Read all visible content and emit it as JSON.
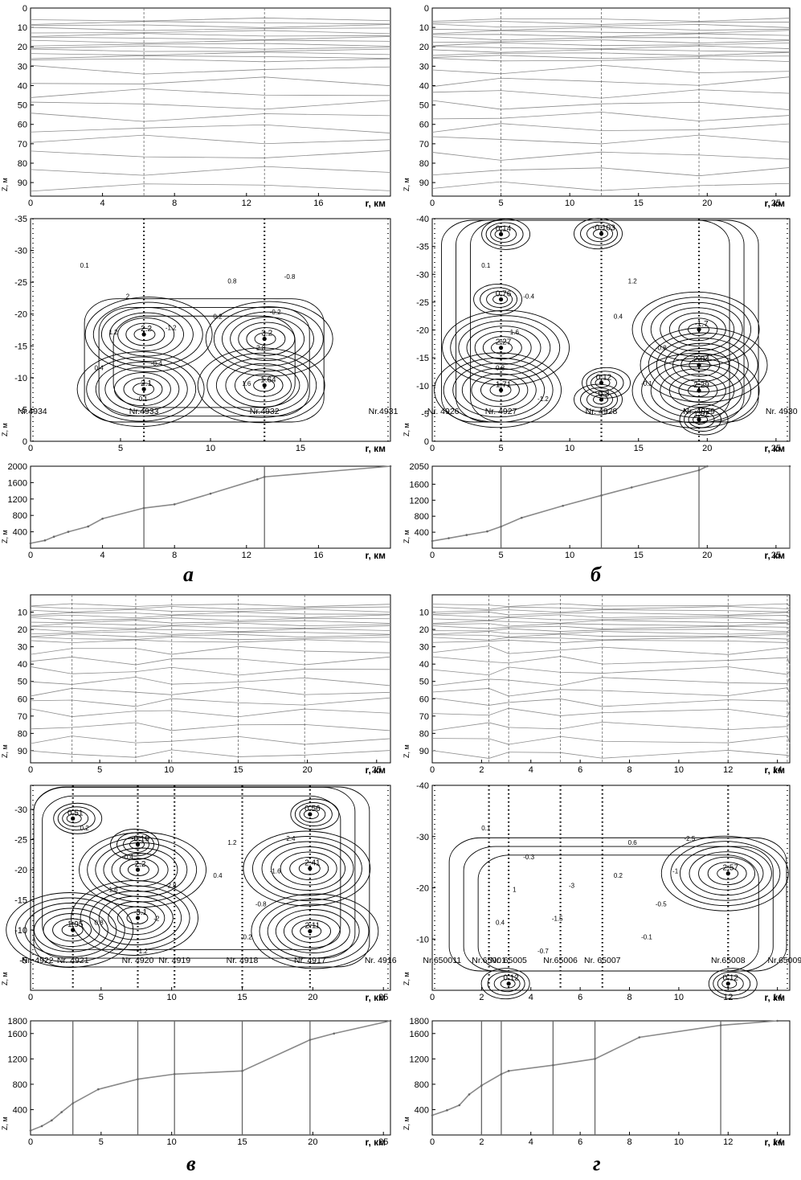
{
  "figure": {
    "panels": [
      {
        "id": "a",
        "label": "а",
        "layers": {
          "xlabel": "r, км",
          "ylabel": "Z, м",
          "xlim": [
            0,
            20
          ],
          "ylim": [
            0,
            97
          ],
          "xticks": [
            0,
            4,
            8,
            12,
            16
          ],
          "yticks": [
            0,
            10,
            20,
            30,
            40,
            50,
            60,
            70,
            80,
            90
          ],
          "wells": [
            6.3,
            13
          ]
        },
        "contour": {
          "xlabel": "r, км",
          "ylabel": "Z, м",
          "xlim": [
            0,
            20
          ],
          "ylim": [
            -35,
            0
          ],
          "xticks": [
            0,
            5,
            10,
            15
          ],
          "yticks": [
            0,
            -5,
            -10,
            -15,
            -20,
            -25,
            -30,
            -35
          ],
          "wells": [
            6.3,
            13
          ],
          "stations": [
            {
              "name": "Nr.4934",
              "x": 0.1
            },
            {
              "name": "Nr.4933",
              "x": 6.3
            },
            {
              "name": "Nr.4932",
              "x": 13
            },
            {
              "name": "Nr.4931",
              "x": 19.6
            }
          ],
          "points": [
            {
              "label": "2.1",
              "x": 6.3,
              "y": -8.2
            },
            {
              "label": "2.2",
              "x": 6.3,
              "y": -16.8
            },
            {
              "label": "-1.64",
              "x": 13,
              "y": -8.8
            },
            {
              "label": "3.2",
              "x": 13,
              "y": -16.1
            }
          ],
          "contour_labels": [
            "0.1",
            "0.2",
            "0.4",
            "0.8",
            "1.2",
            "1.6",
            "2",
            "2.8",
            "-0.1",
            "-0.2",
            "-0.4",
            "-0.8",
            "-1.2"
          ]
        },
        "profile": {
          "xlabel": "r, км",
          "ylabel": "Z, м",
          "xlim": [
            0,
            20
          ],
          "ylim": [
            2000,
            0
          ],
          "xticks": [
            0,
            4,
            8,
            12,
            16
          ],
          "yticks": [
            400,
            800,
            1200,
            1600,
            2000
          ],
          "wells": [
            6.3,
            13
          ],
          "x": [
            0,
            0.8,
            1.3,
            2.1,
            3.2,
            4,
            6.3,
            8,
            10,
            12.6,
            13,
            20
          ],
          "y": [
            120,
            190,
            280,
            400,
            530,
            720,
            980,
            1070,
            1330,
            1680,
            1740,
            2000
          ]
        }
      },
      {
        "id": "b",
        "label": "б",
        "layers": {
          "xlabel": "r, км",
          "ylabel": "Z, м",
          "xlim": [
            0,
            26
          ],
          "ylim": [
            0,
            97
          ],
          "xticks": [
            0,
            5,
            10,
            15,
            20,
            25
          ],
          "yticks": [
            0,
            10,
            20,
            30,
            40,
            50,
            60,
            70,
            80,
            90
          ],
          "wells": [
            5,
            12.3,
            19.4
          ]
        },
        "contour": {
          "xlabel": "r, км",
          "ylabel": "Z, м",
          "xlim": [
            0,
            26
          ],
          "ylim": [
            -40,
            0
          ],
          "xticks": [
            0,
            5,
            10,
            15,
            20,
            25
          ],
          "yticks": [
            0,
            -5,
            -10,
            -15,
            -20,
            -25,
            -30,
            -35,
            -40
          ],
          "wells": [
            5,
            12.3,
            19.4
          ],
          "stations": [
            {
              "name": "Nr. 4926",
              "x": 0.8
            },
            {
              "name": "Nr. 4927",
              "x": 5
            },
            {
              "name": "Nr. 4928",
              "x": 12.3
            },
            {
              "name": "Nr. 4929",
              "x": 19.4
            },
            {
              "name": "Nr. 4930",
              "x": 25.4
            }
          ],
          "points": [
            {
              "label": "1.71",
              "x": 5,
              "y": -9.2
            },
            {
              "label": "2.27",
              "x": 5,
              "y": -16.8
            },
            {
              "label": "0.76",
              "x": 5,
              "y": -25.5
            },
            {
              "label": "0.14",
              "x": 5,
              "y": -37.2
            },
            {
              "label": "0.3",
              "x": 12.3,
              "y": -7.5
            },
            {
              "label": "0.12",
              "x": 12.3,
              "y": -10.5
            },
            {
              "label": "-0.103",
              "x": 12.3,
              "y": -37.3
            },
            {
              "label": "1.02",
              "x": 19.4,
              "y": -3.9
            },
            {
              "label": "2.29",
              "x": 19.4,
              "y": -9.1
            },
            {
              "label": "2.04",
              "x": 19.4,
              "y": -13.7
            },
            {
              "label": "-1.7",
              "x": 19.4,
              "y": -20.1
            }
          ],
          "contour_labels": [
            "0.1",
            "0.4",
            "0.8",
            "1.2",
            "1.6",
            "-0.1",
            "-0.4",
            "-0.8",
            "-1.2"
          ]
        },
        "profile": {
          "xlabel": "r, км",
          "ylabel": "Z, м",
          "xlim": [
            0,
            26
          ],
          "ylim": [
            2050,
            0
          ],
          "xticks": [
            0,
            5,
            10,
            15,
            20,
            25
          ],
          "yticks": [
            400,
            800,
            1200,
            1600,
            2050
          ],
          "wells": [
            5,
            12.3,
            19.4,
            26
          ],
          "x": [
            0,
            1.2,
            2.5,
            4,
            5,
            6.5,
            9.5,
            12.3,
            14.5,
            19.4,
            20,
            26
          ],
          "y": [
            180,
            250,
            330,
            420,
            540,
            760,
            1060,
            1320,
            1520,
            1950,
            2050,
            2050
          ]
        }
      },
      {
        "id": "c",
        "label": "в",
        "layers": {
          "xlabel": "r, км",
          "ylabel": "Z, м",
          "xlim": [
            0,
            26
          ],
          "ylim": [
            0,
            97
          ],
          "xticks": [
            0,
            5,
            10,
            15,
            20,
            25
          ],
          "yticks": [
            10,
            20,
            30,
            40,
            50,
            60,
            70,
            80,
            90
          ],
          "wells": [
            3,
            7.6,
            10.2,
            15,
            19.8
          ]
        },
        "contour": {
          "xlabel": "r, км",
          "ylabel": "Z, м",
          "xlim": [
            0,
            25.5
          ],
          "ylim": [
            -34,
            0
          ],
          "xticks": [
            0,
            5,
            10,
            15,
            20,
            25
          ],
          "yticks": [
            -5,
            -10,
            -15,
            -20,
            -25,
            -30
          ],
          "wells": [
            3,
            7.6,
            10.2,
            15,
            19.8
          ],
          "stations": [
            {
              "name": "Nr. 4922",
              "x": 0.5
            },
            {
              "name": "Nr. 4921",
              "x": 3
            },
            {
              "name": "Nr. 4920",
              "x": 7.6
            },
            {
              "name": "Nr. 4919",
              "x": 10.2
            },
            {
              "name": "Nr. 4918",
              "x": 15
            },
            {
              "name": "Nr. 4917",
              "x": 19.8
            },
            {
              "name": "Nr. 4916",
              "x": 24.8
            }
          ],
          "points": [
            {
              "label": "1.95",
              "x": 3,
              "y": -10
            },
            {
              "label": "0.51",
              "x": 3,
              "y": -28.5
            },
            {
              "label": "-3.1",
              "x": 7.6,
              "y": -12
            },
            {
              "label": "2.2",
              "x": 7.6,
              "y": -20
            },
            {
              "label": "-0.19",
              "x": 7.6,
              "y": -24.2
            },
            {
              "label": "2.11",
              "x": 19.8,
              "y": -9.8
            },
            {
              "label": "2.41",
              "x": 19.8,
              "y": -20.2
            },
            {
              "label": "0.56",
              "x": 19.8,
              "y": -29.2
            }
          ],
          "contour_labels": [
            "0.2",
            "0.4",
            "0.8",
            "1.2",
            "1.6",
            "-0.2",
            "-0.4",
            "-0.8",
            "-1.2",
            "-1.6",
            "-2",
            "-2.4",
            "-2.8"
          ]
        },
        "profile": {
          "xlabel": "r, км",
          "ylabel": "Z, м",
          "xlim": [
            0,
            25.5
          ],
          "ylim": [
            1800,
            0
          ],
          "xticks": [
            0,
            5,
            10,
            15,
            20,
            25
          ],
          "yticks": [
            400,
            800,
            1200,
            1600,
            1800
          ],
          "wells": [
            3,
            7.6,
            10.2,
            15,
            19.8
          ],
          "x": [
            0,
            0.8,
            1.5,
            2.2,
            3,
            4.8,
            7.6,
            10.2,
            15,
            19.8,
            21.5,
            25.5
          ],
          "y": [
            70,
            140,
            230,
            360,
            500,
            720,
            880,
            960,
            1010,
            1500,
            1600,
            1800
          ]
        }
      },
      {
        "id": "d",
        "label": "г",
        "layers": {
          "xlabel": "r, км",
          "ylabel": "Z, м",
          "xlim": [
            0,
            14.5
          ],
          "ylim": [
            0,
            97
          ],
          "xticks": [
            0,
            2,
            4,
            6,
            8,
            10,
            12,
            14
          ],
          "yticks": [
            10,
            20,
            30,
            40,
            50,
            60,
            70,
            80,
            90
          ],
          "wells": [
            2.3,
            3.1,
            5.2,
            6.9,
            12,
            14.4
          ]
        },
        "contour": {
          "xlabel": "r, км",
          "ylabel": "Z, м",
          "xlim": [
            0,
            14.5
          ],
          "ylim": [
            -40,
            0
          ],
          "xticks": [
            0,
            2,
            4,
            6,
            8,
            10,
            12,
            14
          ],
          "yticks": [
            -10,
            -20,
            -30,
            -40
          ],
          "wells": [
            2.3,
            3.1,
            5.2,
            6.9,
            12
          ],
          "stations": [
            {
              "name": "Nr.650011",
              "x": 0.4
            },
            {
              "name": "Nr.65001",
              "x": 2.3
            },
            {
              "name": "Nr. 65005",
              "x": 3.1
            },
            {
              "name": "Nr.65006",
              "x": 5.2
            },
            {
              "name": "Nr. 65007",
              "x": 6.9
            },
            {
              "name": "Nr.65008",
              "x": 12
            },
            {
              "name": "Nr.65009",
              "x": 14.3
            }
          ],
          "points": [
            {
              "label": "0.12",
              "x": 3.1,
              "y": -1.3
            },
            {
              "label": "0.12",
              "x": 12,
              "y": -1.3
            },
            {
              "label": "2.57",
              "x": 12,
              "y": -22.8
            }
          ],
          "contour_labels": [
            "0.1",
            "0.2",
            "0.4",
            "0.6",
            "1",
            "-0.1",
            "-0.3",
            "-0.5",
            "-0.7",
            "-1",
            "-1.5",
            "-2.5",
            "-3"
          ]
        },
        "profile": {
          "xlabel": "r, км",
          "ylabel": "Z, м",
          "xlim": [
            0,
            14.5
          ],
          "ylim": [
            1800,
            0
          ],
          "xticks": [
            0,
            2,
            4,
            6,
            8,
            10,
            12,
            14
          ],
          "yticks": [
            400,
            800,
            1200,
            1600,
            1800
          ],
          "wells": [
            2,
            2.8,
            4.9,
            6.6,
            11.7
          ],
          "x": [
            0,
            0.6,
            1.1,
            1.5,
            2,
            2.8,
            3.1,
            4.9,
            6.6,
            8.4,
            11.7,
            14
          ],
          "y": [
            310,
            390,
            470,
            640,
            780,
            960,
            1010,
            1100,
            1200,
            1540,
            1730,
            1800
          ]
        }
      }
    ]
  },
  "style": {
    "ink": "#000000",
    "grid_line": "#7a7a7a",
    "layer_line": "#8c8c8c",
    "profile_line": "#8a8a8a",
    "well_line": "#666666"
  }
}
